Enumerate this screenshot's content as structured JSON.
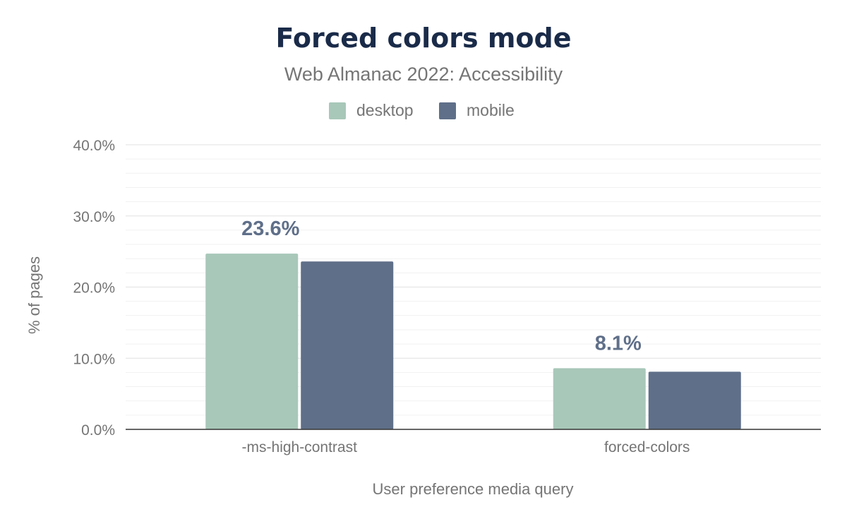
{
  "chart_data": {
    "type": "bar",
    "title": "Forced colors mode",
    "subtitle": "Web Almanac 2022: Accessibility",
    "xlabel": "User preference media query",
    "ylabel": "% of pages",
    "categories": [
      "-ms-high-contrast",
      "forced-colors"
    ],
    "series": [
      {
        "name": "desktop",
        "values": [
          24.7,
          8.6
        ],
        "color": "#a8c8b9"
      },
      {
        "name": "mobile",
        "values": [
          23.6,
          8.1
        ],
        "color": "#5f6f89"
      }
    ],
    "ylim": [
      0,
      40
    ],
    "yticks": [
      0,
      10,
      20,
      30,
      40
    ],
    "ytick_labels": [
      "0.0%",
      "10.0%",
      "20.0%",
      "30.0%",
      "40.0%"
    ],
    "data_labels": [
      {
        "text": "23.6%",
        "series_index": 1,
        "category_index": 0
      },
      {
        "text": "8.1%",
        "series_index": 1,
        "category_index": 1
      }
    ],
    "data_label_color": "#5f6f89",
    "grid": true,
    "legend_position": "top-center"
  }
}
